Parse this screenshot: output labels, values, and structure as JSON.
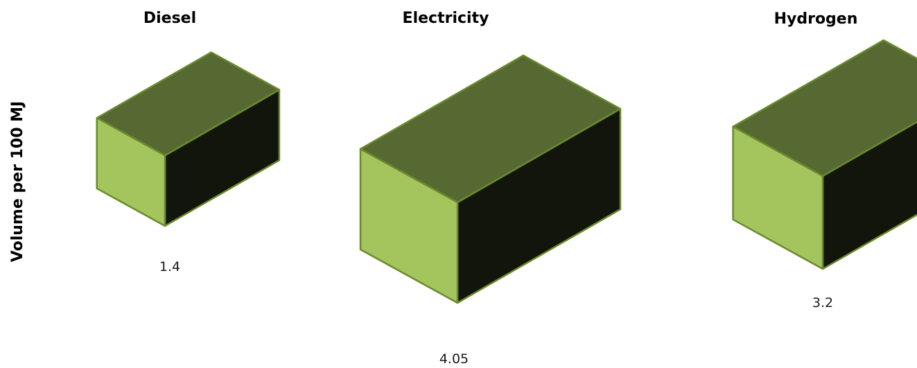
{
  "chart_data": {
    "type": "bar",
    "ylabel": "Volume per 100 MJ",
    "categories": [
      "Diesel",
      "Electricity",
      "Hydrogen"
    ],
    "values": [
      1.4,
      4.05,
      3.2
    ],
    "value_labels": [
      "1.4",
      "4.05",
      "3.2"
    ],
    "colors": {
      "front": "#a4c45e",
      "top": "#576933",
      "side": "#11150b",
      "edge": "#6a8a2c"
    }
  }
}
